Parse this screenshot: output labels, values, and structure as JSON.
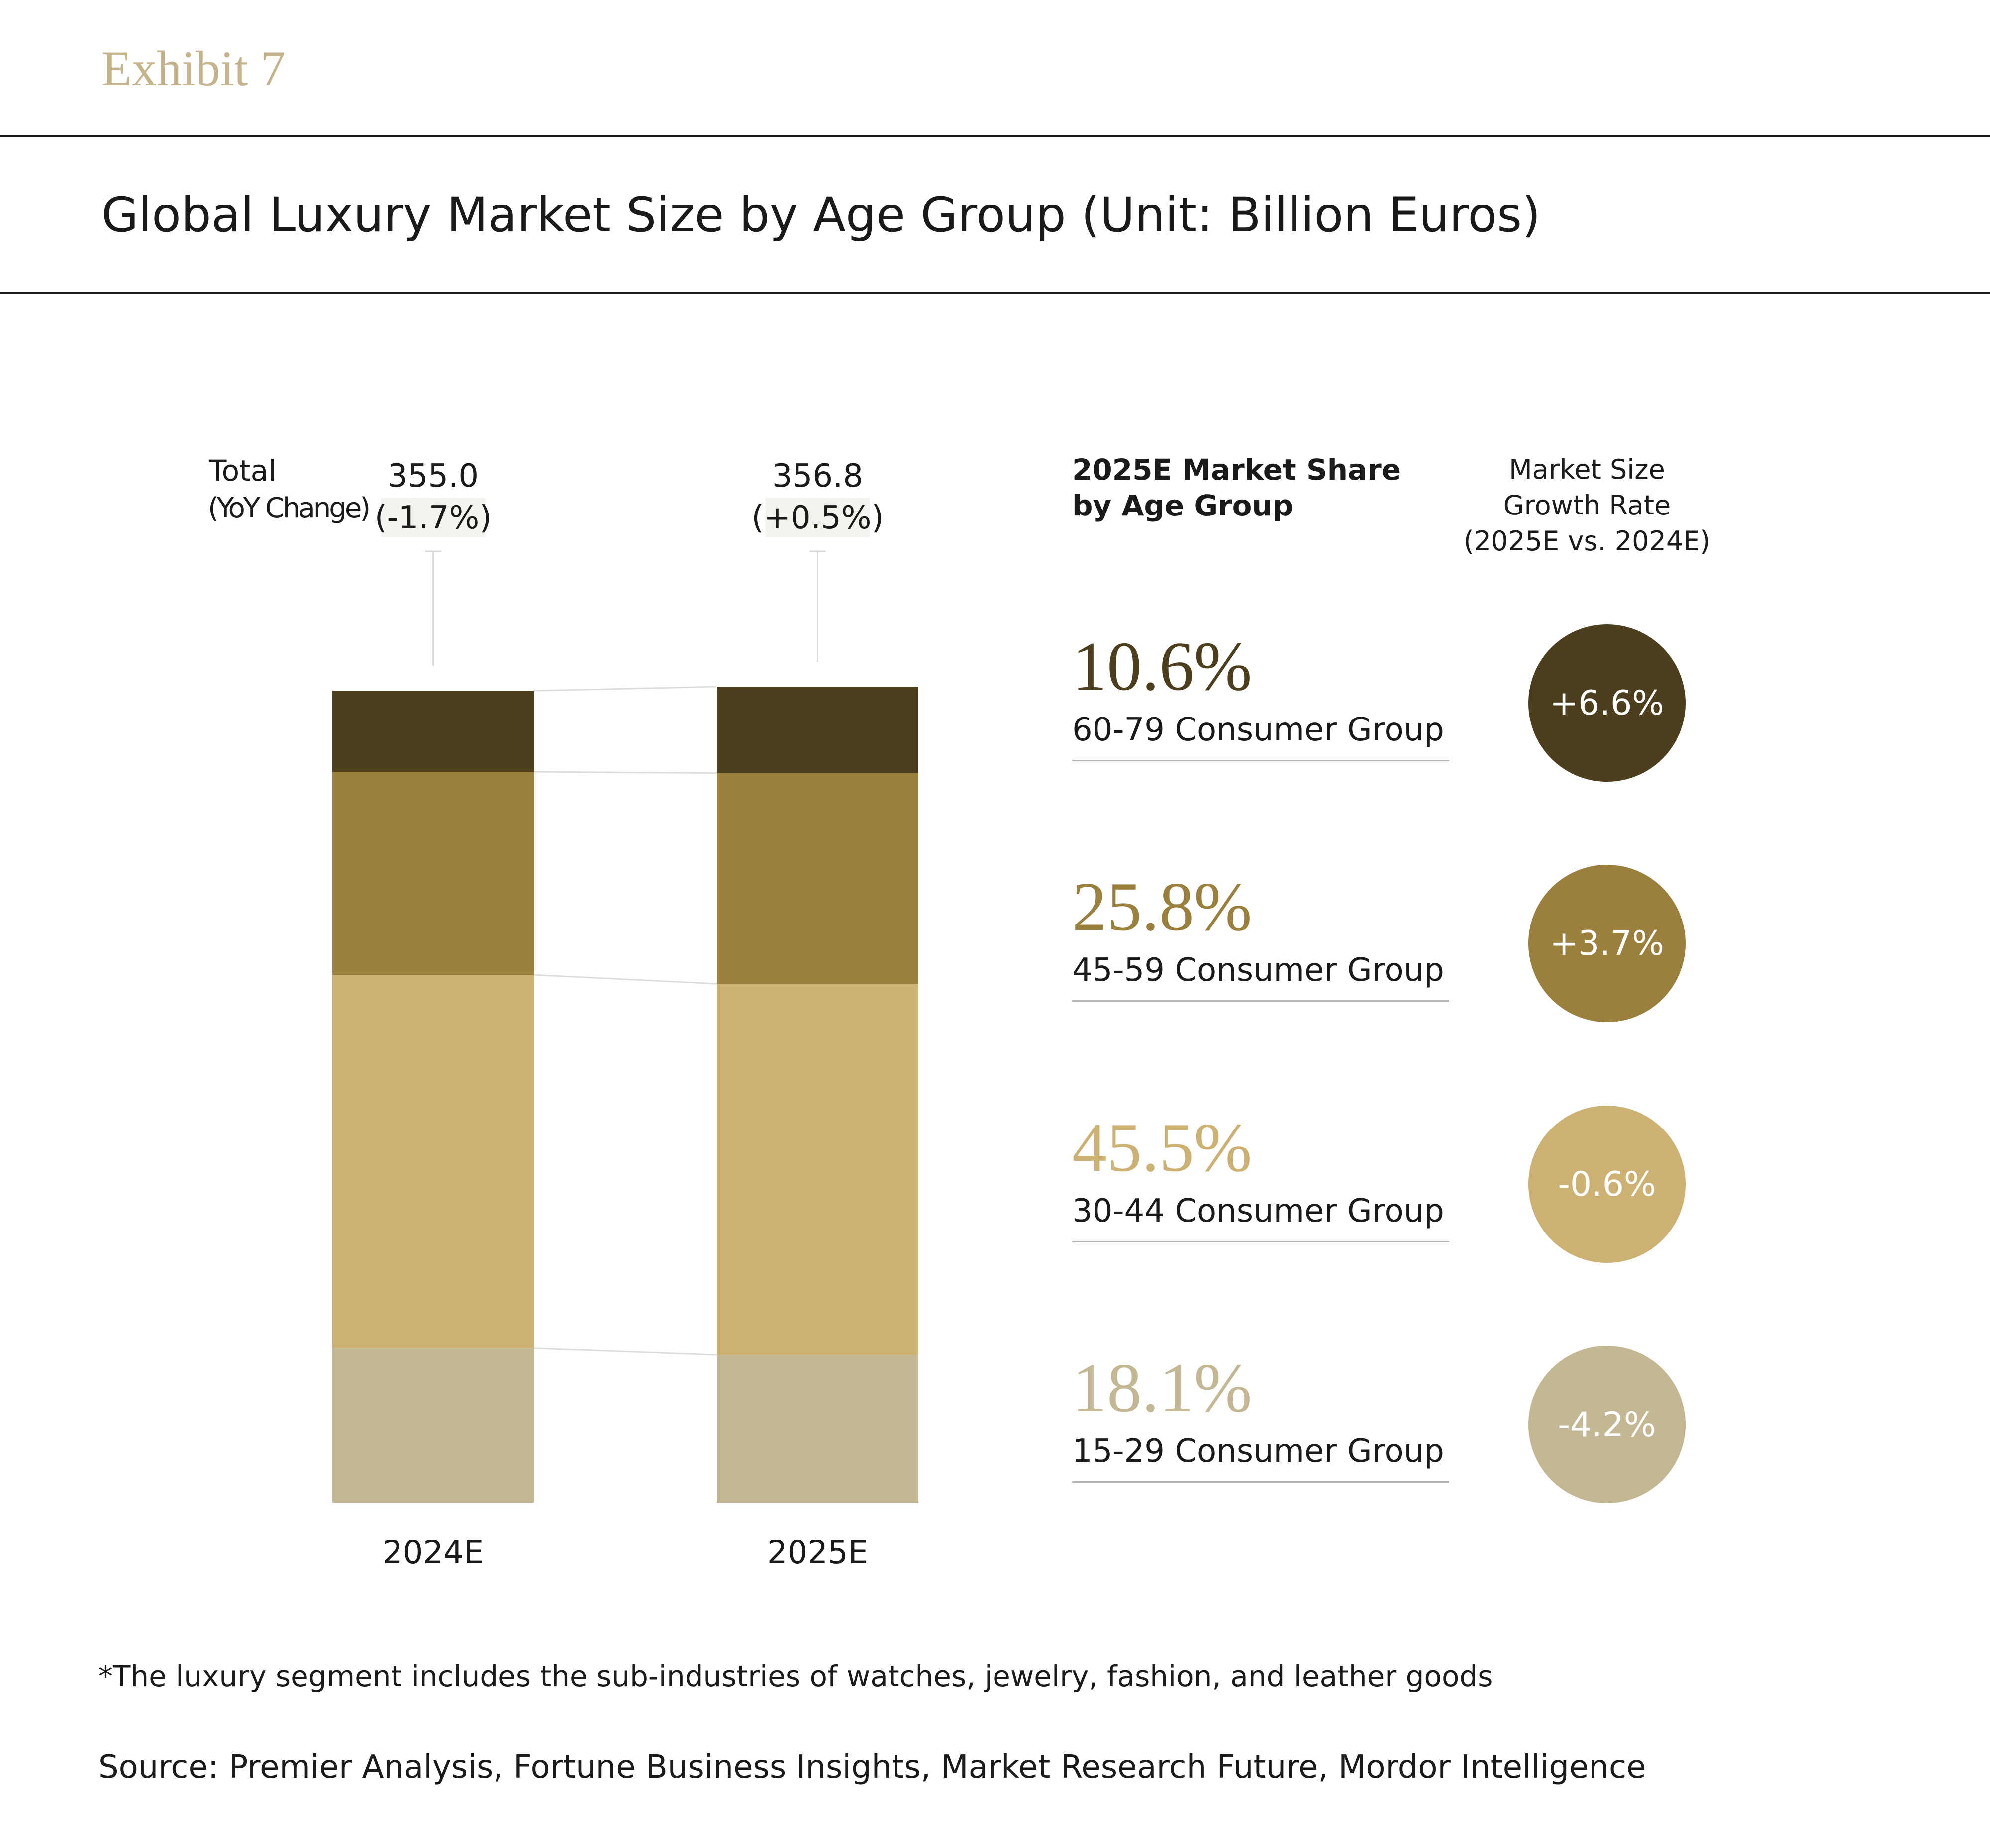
{
  "header": {
    "exhibit": "Exhibit 7",
    "title": "Global Luxury Market Size by Age Group (Unit:  Billion Euros)"
  },
  "chart_data": {
    "type": "bar",
    "stacked": true,
    "title": "Global Luxury Market Size by Age Group (Unit:  Billion Euros)",
    "categories": [
      "2024E",
      "2025E"
    ],
    "total_label": "Total",
    "total_sublabel": "(YoY Change)",
    "totals": [
      {
        "value": "355.0",
        "change": "(-1.7%)"
      },
      {
        "value": "356.8",
        "change": "(+0.5%)"
      }
    ],
    "series": [
      {
        "name": "15-29 Consumer Group",
        "color": "#c4b794",
        "values": [
          67.5,
          64.6
        ]
      },
      {
        "name": "30-44 Consumer Group",
        "color": "#cdb173",
        "values": [
          163.3,
          162.3
        ]
      },
      {
        "name": "45-59 Consumer Group",
        "color": "#9b7f3c",
        "values": [
          88.8,
          92.1
        ]
      },
      {
        "name": "60-79 Consumer Group",
        "color": "#4d3f1e",
        "values": [
          35.4,
          37.8
        ]
      }
    ],
    "ylim": [
      0,
      356.8
    ]
  },
  "share_panel": {
    "header_line1": "2025E Market Share",
    "header_line2": "by Age Group",
    "growth_line1": "Market Size",
    "growth_line2": "Growth Rate",
    "growth_line3": "(2025E vs. 2024E)",
    "groups": [
      {
        "share": "10.6%",
        "label": "60-79 Consumer Group",
        "growth": "+6.6%",
        "color": "#4d3f1e"
      },
      {
        "share": "25.8%",
        "label": "45-59 Consumer Group",
        "growth": "+3.7%",
        "color": "#9b7f3c"
      },
      {
        "share": "45.5%",
        "label": "30-44 Consumer Group",
        "growth": "-0.6%",
        "color": "#cdb173"
      },
      {
        "share": "18.1%",
        "label": "15-29 Consumer Group",
        "growth": "-4.2%",
        "color": "#c4b794"
      }
    ]
  },
  "footer": {
    "footnote": "*The luxury segment includes the sub-industries of watches, jewelry, fashion, and leather goods",
    "source": "Source: Premier Analysis, Fortune Business Insights, Market Research Future, Mordor Intelligence"
  }
}
